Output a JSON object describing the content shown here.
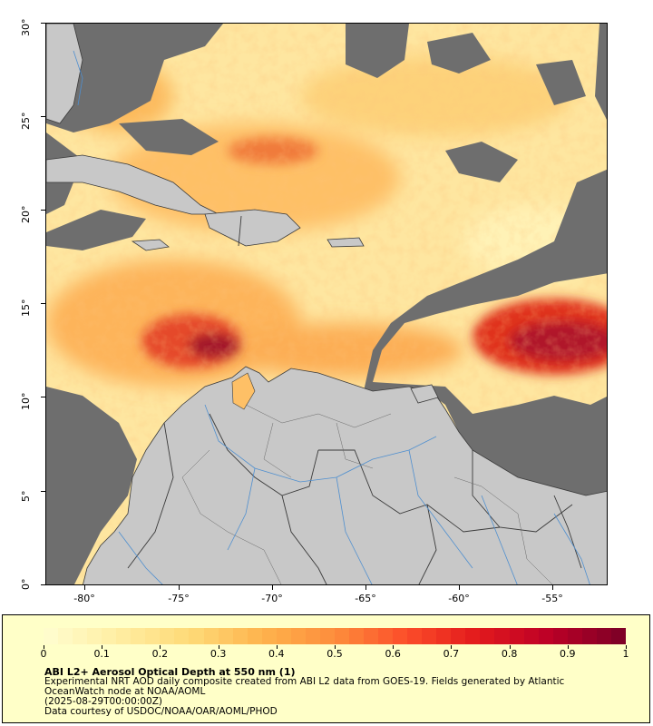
{
  "map": {
    "latitude_ticks": [
      "0°",
      "5°",
      "10°",
      "15°",
      "20°",
      "25°",
      "30°"
    ],
    "longitude_ticks": [
      "-80°",
      "-75°",
      "-70°",
      "-65°",
      "-60°",
      "-55°"
    ],
    "land_color": "#c8c8c8",
    "nodata_color": "#6e6e6e",
    "border_color": "#3a3a3a",
    "river_color": "#4f8fcf"
  },
  "colorbar": {
    "labels": [
      "0",
      "0.1",
      "0.2",
      "0.3",
      "0.4",
      "0.5",
      "0.6",
      "0.7",
      "0.8",
      "0.9",
      "1"
    ],
    "stops": [
      "#fffccc",
      "#ffeda0",
      "#fed976",
      "#feb24c",
      "#fd8d3c",
      "#fc4e2a",
      "#e31a1c",
      "#bd0026",
      "#800026"
    ]
  },
  "caption": {
    "title": "ABI L2+ Aerosol Optical Depth at 550 nm (1)",
    "line1": "Experimental NRT AOD daily composite created from ABI L2 data from GOES-19. Fields generated by Atlantic",
    "line2": "OceanWatch node at NOAA/AOML",
    "line3": "(2025-08-29T00:00:00Z)",
    "line4": "Data courtesy of USDOC/NOAA/OAR/AOML/PHOD"
  }
}
